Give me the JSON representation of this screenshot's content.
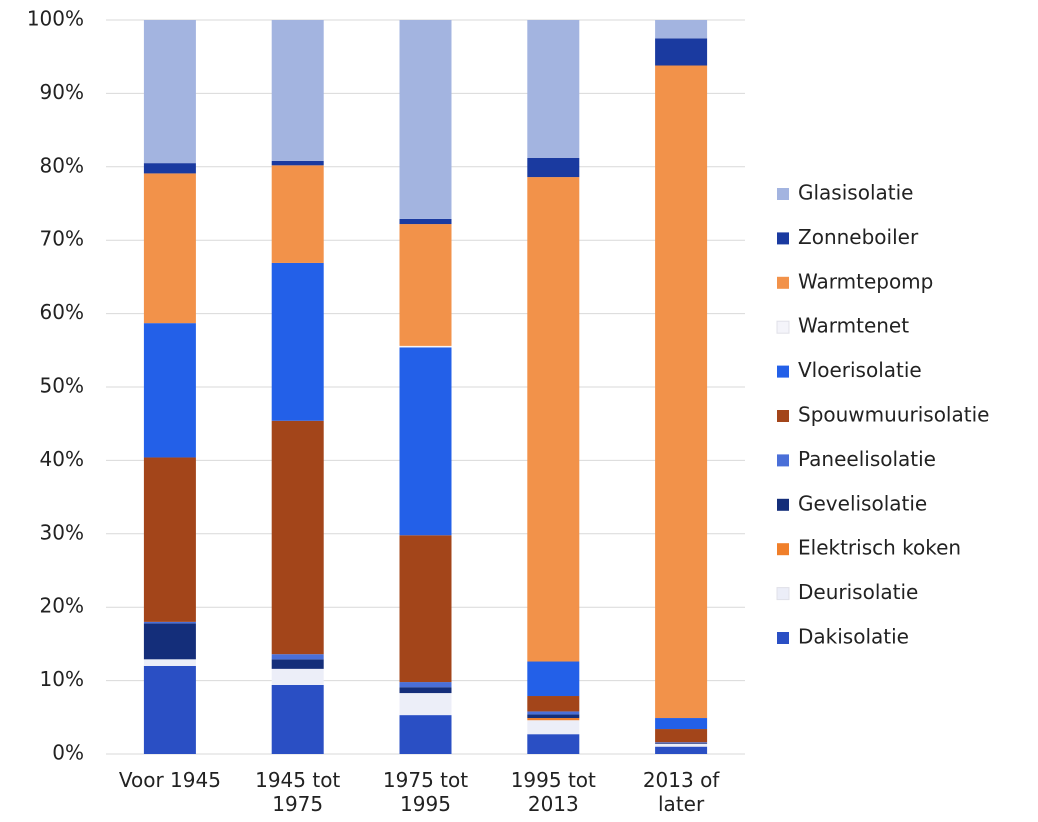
{
  "chart_data": {
    "type": "stacked_bar",
    "categories": [
      "Voor 1945",
      "1945 tot 1975",
      "1975 tot 1995",
      "1995 tot 2013",
      "2013 of later"
    ],
    "series": [
      {
        "name": "Dakisolatie",
        "color": "#2a4fc4",
        "values": [
          12.0,
          9.4,
          5.3,
          2.7,
          1.0
        ]
      },
      {
        "name": "Deurisolatie",
        "color": "#eceef8",
        "values": [
          0.9,
          2.2,
          3.0,
          1.9,
          0.4
        ]
      },
      {
        "name": "Elektrisch koken",
        "color": "#f07f2a",
        "values": [
          0,
          0,
          0,
          0.3,
          0
        ]
      },
      {
        "name": "Gevelisolatie",
        "color": "#142e7a",
        "values": [
          4.9,
          1.3,
          0.8,
          0.5,
          0.1
        ]
      },
      {
        "name": "Paneelisolatie",
        "color": "#4a6fd8",
        "values": [
          0.2,
          0.7,
          0.7,
          0.4,
          0.1
        ]
      },
      {
        "name": "Spouwmuurisolatie",
        "color": "#a3451a",
        "values": [
          22.4,
          31.8,
          20.0,
          2.1,
          1.8
        ]
      },
      {
        "name": "Vloerisolatie",
        "color": "#2360e8",
        "values": [
          18.3,
          21.5,
          25.6,
          4.7,
          1.5
        ]
      },
      {
        "name": "Warmtenet",
        "color": "#f4f4fa",
        "values": [
          0,
          0,
          0.2,
          0,
          0
        ]
      },
      {
        "name": "Warmtepomp",
        "color": "#f2924a",
        "values": [
          20.4,
          13.3,
          16.6,
          66.0,
          88.9
        ]
      },
      {
        "name": "Zonneboiler",
        "color": "#1a3aa0",
        "values": [
          1.4,
          0.6,
          0.7,
          2.6,
          3.7
        ]
      },
      {
        "name": "Glasisolatie",
        "color": "#a3b4e0",
        "values": [
          19.5,
          19.2,
          27.1,
          18.8,
          2.5
        ]
      }
    ],
    "ylim": [
      0,
      100
    ],
    "yticks": [
      {
        "value": 0,
        "label": "0%"
      },
      {
        "value": 10,
        "label": "10%"
      },
      {
        "value": 20,
        "label": "20%"
      },
      {
        "value": 30,
        "label": "30%"
      },
      {
        "value": 40,
        "label": "40%"
      },
      {
        "value": 50,
        "label": "50%"
      },
      {
        "value": 60,
        "label": "60%"
      },
      {
        "value": 70,
        "label": "70%"
      },
      {
        "value": 80,
        "label": "80%"
      },
      {
        "value": 90,
        "label": "90%"
      },
      {
        "value": 100,
        "label": "100%"
      }
    ],
    "grid": true
  }
}
